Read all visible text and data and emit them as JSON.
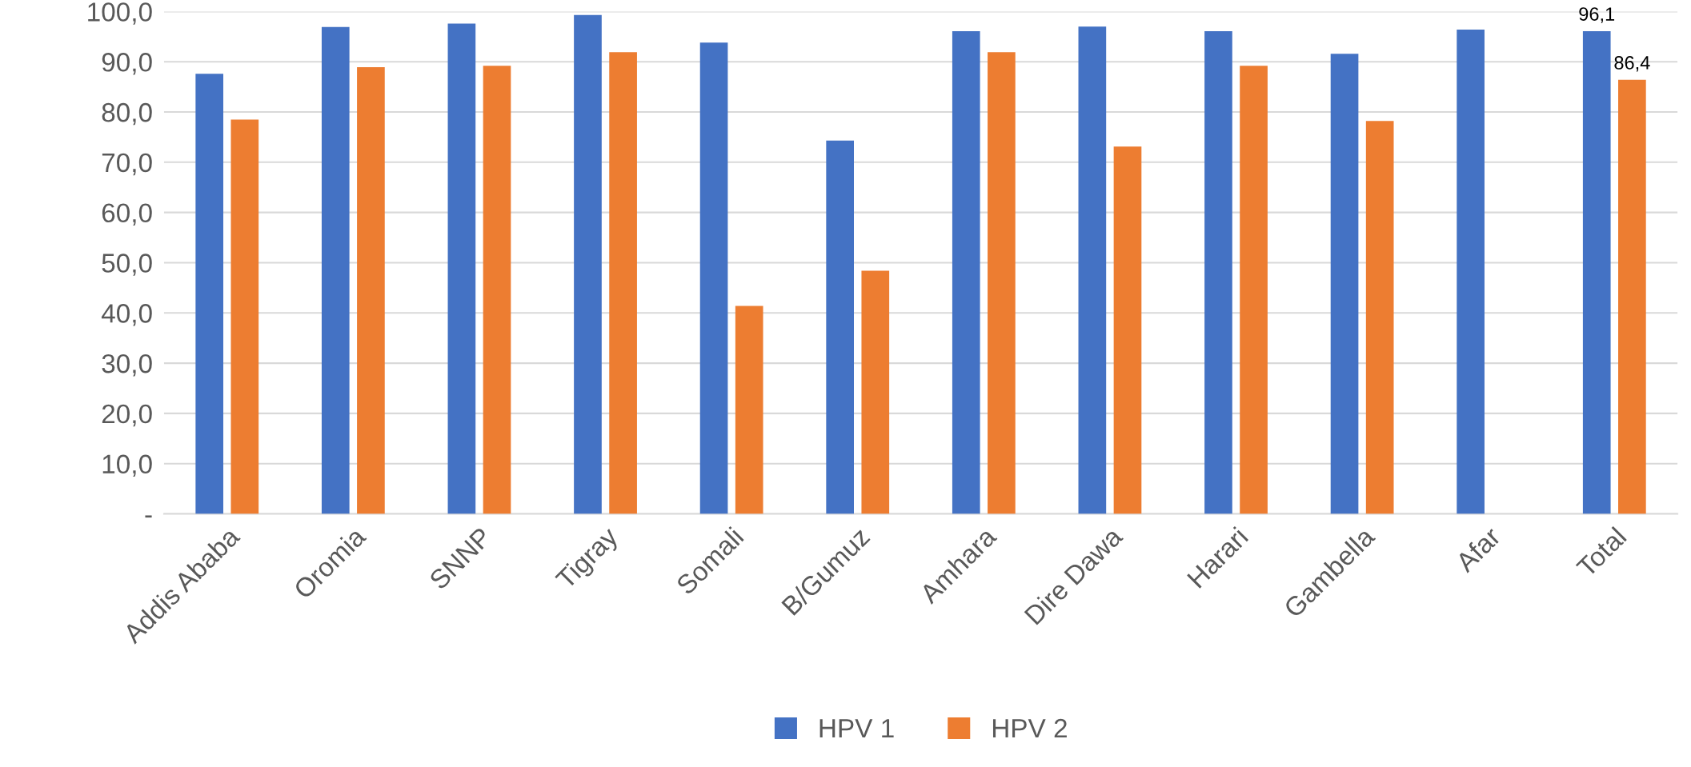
{
  "chart_data": {
    "type": "bar",
    "categories": [
      "Addis Ababa",
      "Oromia",
      "SNNP",
      "Tigray",
      "Somali",
      "B/Gumuz",
      "Amhara",
      "Dire Dawa",
      "Harari",
      "Gambella",
      "Afar",
      "Total"
    ],
    "series": [
      {
        "name": "HPV 1",
        "color": "#4472c4",
        "values": [
          87.6,
          96.9,
          97.6,
          99.3,
          93.8,
          74.3,
          96.1,
          97.0,
          96.1,
          91.6,
          96.4,
          96.1
        ],
        "value_labels": [
          null,
          null,
          null,
          null,
          null,
          null,
          null,
          null,
          null,
          null,
          null,
          "96,1"
        ]
      },
      {
        "name": "HPV 2",
        "color": "#ed7d31",
        "values": [
          78.5,
          88.9,
          89.2,
          91.9,
          41.4,
          48.4,
          91.9,
          73.1,
          89.2,
          78.2,
          null,
          86.4
        ],
        "value_labels": [
          null,
          null,
          null,
          null,
          null,
          null,
          null,
          null,
          null,
          null,
          null,
          "86,4"
        ]
      }
    ],
    "ylim": [
      0,
      100
    ],
    "yticks": [
      {
        "value": 0,
        "label": "-"
      },
      {
        "value": 10,
        "label": "10,0"
      },
      {
        "value": 20,
        "label": "20,0"
      },
      {
        "value": 30,
        "label": "30,0"
      },
      {
        "value": 40,
        "label": "40,0"
      },
      {
        "value": 50,
        "label": "50,0"
      },
      {
        "value": 60,
        "label": "60,0"
      },
      {
        "value": 70,
        "label": "70,0"
      },
      {
        "value": 80,
        "label": "80,0"
      },
      {
        "value": 90,
        "label": "90,0"
      },
      {
        "value": 100,
        "label": "100,0"
      }
    ],
    "grid": "y",
    "legend": "bottom"
  }
}
